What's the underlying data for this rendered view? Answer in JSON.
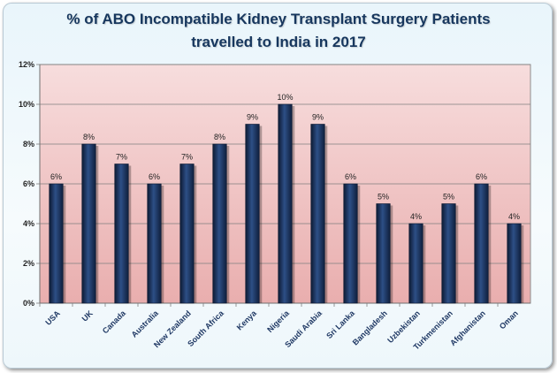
{
  "chart_data": {
    "type": "bar",
    "title_lines": [
      "% of ABO Incompatible Kidney Transplant Surgery Patients",
      "travelled to India in 2017"
    ],
    "categories": [
      "USA",
      "UK",
      "Canada",
      "Australia",
      "New Zealand",
      "South Africa",
      "Kenya",
      "Nigeria",
      "Saudi Arabia",
      "Sri Lanka",
      "Bangladesh",
      "Uzbekistan",
      "Turkmenistan",
      "Afghanistan",
      "Oman"
    ],
    "values": [
      6,
      8,
      7,
      6,
      7,
      8,
      9,
      10,
      9,
      6,
      5,
      4,
      5,
      6,
      4
    ],
    "value_labels": [
      "6%",
      "8%",
      "7%",
      "6%",
      "7%",
      "8%",
      "9%",
      "10%",
      "9%",
      "6%",
      "5%",
      "4%",
      "5%",
      "6%",
      "4%"
    ],
    "yticks": [
      0,
      2,
      4,
      6,
      8,
      10,
      12
    ],
    "ytick_labels": [
      "0%",
      "2%",
      "4%",
      "6%",
      "8%",
      "10%",
      "12%"
    ],
    "ylim": [
      0,
      12
    ],
    "xlabel": "",
    "ylabel": "",
    "grid": true,
    "bar_color": "#1f3864"
  }
}
